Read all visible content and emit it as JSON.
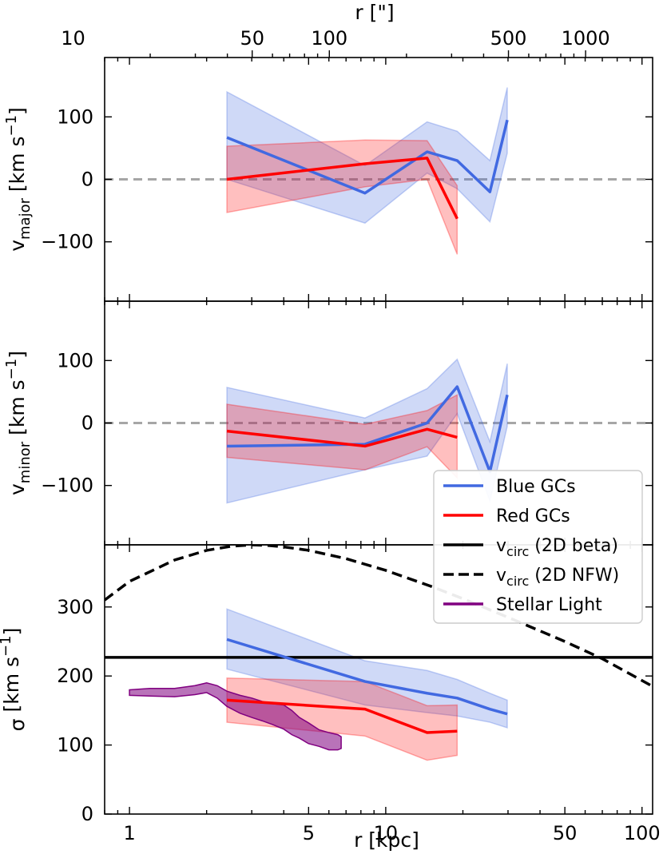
{
  "chart_data": {
    "type": "line",
    "top_axis": {
      "label": "r [\"]",
      "ticks": [
        {
          "value": 10,
          "label": "10"
        },
        {
          "value": 50,
          "label": "50"
        },
        {
          "value": 100,
          "label": "100"
        },
        {
          "value": 500,
          "label": "500"
        },
        {
          "value": 1000,
          "label": "1000"
        }
      ]
    },
    "x_axis": {
      "label": "r [kpc]",
      "scale": "log",
      "xlim": [
        0.8,
        110
      ],
      "ticks": [
        {
          "value": 1,
          "label": "1"
        },
        {
          "value": 5,
          "label": "5"
        },
        {
          "value": 10,
          "label": "10"
        },
        {
          "value": 50,
          "label": "50"
        },
        {
          "value": 100,
          "label": "100"
        }
      ]
    },
    "panels": [
      {
        "id": "major",
        "ylabel": "v_major [km s^-1]",
        "ylabel_main": "v",
        "ylabel_sub": "major",
        "ylabel_unit": " [km s",
        "ylabel_sup": "−1",
        "ylabel_close": "]",
        "ylim": [
          -195,
          195
        ],
        "yticks": [
          {
            "value": -100,
            "label": "−100"
          },
          {
            "value": 0,
            "label": "0"
          },
          {
            "value": 100,
            "label": "100"
          }
        ],
        "reference_line": 0,
        "series": [
          {
            "name": "Blue GCs",
            "x": [
              2.4,
              8.3,
              14.5,
              19.0,
              25.5,
              29.8
            ],
            "y": [
              67,
              -22,
              44,
              30,
              -20,
              95
            ],
            "upper": [
              140,
              22,
              92,
              77,
              30,
              147
            ],
            "lower": [
              0,
              -70,
              10,
              -15,
              -68,
              42
            ]
          },
          {
            "name": "Red GCs",
            "x": [
              2.4,
              8.3,
              14.5,
              19.0
            ],
            "y": [
              0,
              25,
              34,
              -63
            ],
            "upper": [
              53,
              63,
              62,
              -10
            ],
            "lower": [
              -53,
              -12,
              0,
              -120
            ]
          }
        ]
      },
      {
        "id": "minor",
        "ylabel": "v_minor [km s^-1]",
        "ylabel_main": "v",
        "ylabel_sub": "minor",
        "ylabel_unit": " [km s",
        "ylabel_sup": "−1",
        "ylabel_close": "]",
        "ylim": [
          -195,
          195
        ],
        "yticks": [
          {
            "value": -100,
            "label": "−100"
          },
          {
            "value": 0,
            "label": "0"
          },
          {
            "value": 100,
            "label": "100"
          }
        ],
        "reference_line": 0,
        "series": [
          {
            "name": "Blue GCs",
            "x": [
              2.4,
              8.3,
              14.5,
              19.0,
              25.5,
              29.8
            ],
            "y": [
              -37,
              -34,
              0,
              58,
              -78,
              45
            ],
            "upper": [
              57,
              8,
              55,
              102,
              -30,
              95
            ],
            "lower": [
              -128,
              -75,
              -53,
              15,
              -125,
              -5
            ]
          },
          {
            "name": "Red GCs",
            "x": [
              2.4,
              8.3,
              14.5,
              19.0
            ],
            "y": [
              -13,
              -37,
              -10,
              -23
            ],
            "upper": [
              30,
              -2,
              20,
              45
            ],
            "lower": [
              -55,
              -75,
              -38,
              -88
            ]
          }
        ]
      },
      {
        "id": "sigma",
        "ylabel": "σ [km s^-1]",
        "ylabel_main": "σ",
        "ylabel_sub": "",
        "ylabel_unit": " [km s",
        "ylabel_sup": "−1",
        "ylabel_close": "]",
        "ylim": [
          0,
          390
        ],
        "yticks": [
          {
            "value": 0,
            "label": "0"
          },
          {
            "value": 100,
            "label": "100"
          },
          {
            "value": 200,
            "label": "200"
          },
          {
            "value": 300,
            "label": "300"
          }
        ],
        "series": [
          {
            "name": "Blue GCs",
            "x": [
              2.4,
              8.3,
              14.5,
              19.0,
              25.5,
              29.8
            ],
            "y": [
              253,
              192,
              175,
              168,
              152,
              145
            ],
            "upper": [
              297,
              222,
              208,
              195,
              175,
              165
            ],
            "lower": [
              210,
              158,
              147,
              142,
              133,
              125
            ]
          },
          {
            "name": "Red GCs",
            "x": [
              2.4,
              8.3,
              14.5,
              19.0
            ],
            "y": [
              165,
              152,
              118,
              120
            ],
            "upper": [
              197,
              192,
              157,
              158
            ],
            "lower": [
              133,
              113,
              78,
              85
            ]
          }
        ],
        "vcirc_beta": 227,
        "vcirc_nfw": {
          "x": [
            0.8,
            1.0,
            1.5,
            2.0,
            2.5,
            3.0,
            3.5,
            4.0,
            5.0,
            7.0,
            10.0,
            15.0,
            20.0,
            30.0,
            50.0,
            70.0,
            110.0
          ],
          "y": [
            310,
            337,
            368,
            382,
            388,
            390,
            389,
            387,
            382,
            370,
            353,
            330,
            312,
            285,
            250,
            225,
            185
          ]
        },
        "stellar_light": {
          "x": [
            1.0,
            1.2,
            1.5,
            1.8,
            2.0,
            2.2,
            2.4,
            2.7,
            3.0,
            3.3,
            3.6,
            4.0,
            4.3,
            4.6,
            5.0,
            5.5,
            6.0,
            6.5,
            6.7
          ],
          "y": [
            175,
            177,
            176,
            180,
            185,
            178,
            168,
            160,
            155,
            150,
            145,
            140,
            132,
            125,
            117,
            110,
            106,
            105,
            104
          ],
          "upper": [
            180,
            182,
            182,
            186,
            190,
            186,
            178,
            172,
            168,
            163,
            160,
            158,
            150,
            140,
            132,
            122,
            118,
            115,
            112
          ],
          "lower": [
            172,
            171,
            170,
            173,
            176,
            168,
            156,
            146,
            140,
            135,
            130,
            123,
            115,
            110,
            102,
            98,
            93,
            93,
            95
          ]
        }
      }
    ],
    "legend": {
      "location": "right",
      "entries": [
        {
          "label": "Blue GCs",
          "style": "solid",
          "color": "#4169e1"
        },
        {
          "label": "Red GCs",
          "style": "solid",
          "color": "#ff0000"
        },
        {
          "label_main": "v",
          "label_sub": "circ",
          "label_rest": " (2D beta)",
          "style": "solid",
          "color": "#000000"
        },
        {
          "label_main": "v",
          "label_sub": "circ",
          "label_rest": " (2D NFW)",
          "style": "dashed",
          "color": "#000000"
        },
        {
          "label": "Stellar Light",
          "style": "solid",
          "color": "#800080"
        }
      ]
    },
    "colors": {
      "blue": "#4169e1",
      "blue_fill": "#aab9ee",
      "red": "#ff0000",
      "red_fill": "#ffaaaa",
      "purple": "#800080",
      "purple_fill": "#b066b0",
      "zero_line": "#a6a6a6"
    }
  }
}
